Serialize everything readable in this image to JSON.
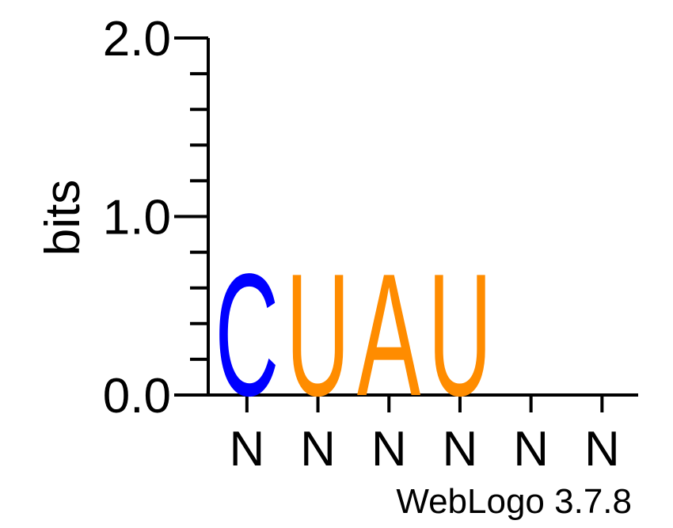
{
  "chart_data": {
    "type": "sequence-logo",
    "ylabel": "bits",
    "ylim": [
      0,
      2
    ],
    "yticks": [
      {
        "value": 0,
        "label": "0.0"
      },
      {
        "value": 1,
        "label": "1.0"
      },
      {
        "value": 2,
        "label": "2.0"
      }
    ],
    "x_tick_labels": [
      "N",
      "N",
      "N",
      "N",
      "N",
      "N"
    ],
    "positions": [
      {
        "letters": [
          {
            "char": "C",
            "bits": 0.7,
            "color": "#0000ff"
          }
        ]
      },
      {
        "letters": [
          {
            "char": "U",
            "bits": 0.7,
            "color": "#ff8c00"
          }
        ]
      },
      {
        "letters": [
          {
            "char": "A",
            "bits": 0.7,
            "color": "#ff8c00"
          }
        ]
      },
      {
        "letters": [
          {
            "char": "U",
            "bits": 0.7,
            "color": "#ff8c00"
          }
        ]
      },
      {
        "letters": []
      },
      {
        "letters": []
      }
    ]
  },
  "footer": "WebLogo 3.7.8"
}
